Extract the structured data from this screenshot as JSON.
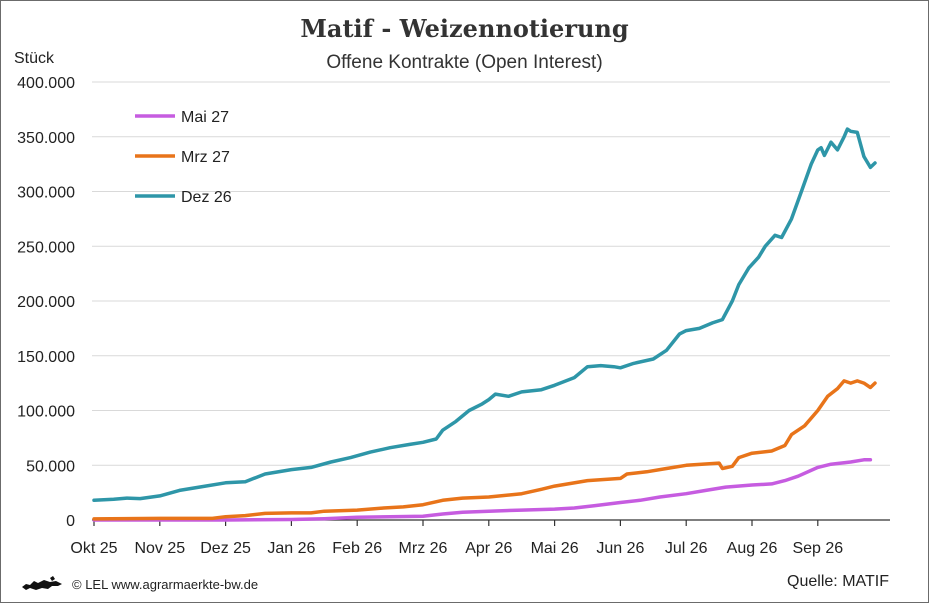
{
  "chart_data": {
    "type": "line",
    "title": "Matif - Weizennotierung",
    "subtitle": "Offene Kontrakte (Open Interest)",
    "ylabel": "Stück",
    "xlabel": "",
    "ylim": [
      0,
      400000
    ],
    "yticks": [
      0,
      50000,
      100000,
      150000,
      200000,
      250000,
      300000,
      350000,
      400000
    ],
    "ytick_labels": [
      "0",
      "50.000",
      "100.000",
      "150.000",
      "200.000",
      "250.000",
      "300.000",
      "350.000",
      "400.000"
    ],
    "x_months": [
      "Okt 25",
      "Nov 25",
      "Dez 25",
      "Jan 26",
      "Feb 26",
      "Mrz 26",
      "Apr 26",
      "Mai 26",
      "Jun 26",
      "Jul 26",
      "Aug 26",
      "Sep 26"
    ],
    "x_unit": "month index (0 = Okt 25)",
    "grid": "horizontal",
    "legend_position": "top-left",
    "series": [
      {
        "name": "Mai 27",
        "color": "#c65ce0",
        "points": [
          [
            0.0,
            0
          ],
          [
            2.0,
            0
          ],
          [
            3.0,
            500
          ],
          [
            3.5,
            1200
          ],
          [
            4.0,
            2500
          ],
          [
            4.5,
            3000
          ],
          [
            5.0,
            3500
          ],
          [
            5.3,
            5500
          ],
          [
            5.6,
            7000
          ],
          [
            6.0,
            8000
          ],
          [
            6.5,
            9000
          ],
          [
            7.0,
            10000
          ],
          [
            7.3,
            11000
          ],
          [
            7.6,
            13000
          ],
          [
            8.0,
            16000
          ],
          [
            8.3,
            18000
          ],
          [
            8.6,
            21000
          ],
          [
            9.0,
            24000
          ],
          [
            9.3,
            27000
          ],
          [
            9.6,
            30000
          ],
          [
            10.0,
            32000
          ],
          [
            10.3,
            33000
          ],
          [
            10.5,
            36000
          ],
          [
            10.7,
            40000
          ],
          [
            11.0,
            48000
          ],
          [
            11.2,
            51000
          ],
          [
            11.5,
            53000
          ],
          [
            11.7,
            55000
          ],
          [
            11.8,
            55000
          ]
        ]
      },
      {
        "name": "Mrz 27",
        "color": "#e8741a",
        "points": [
          [
            0.0,
            1000
          ],
          [
            1.0,
            1500
          ],
          [
            1.8,
            1500
          ],
          [
            2.0,
            3000
          ],
          [
            2.3,
            4000
          ],
          [
            2.6,
            6000
          ],
          [
            3.0,
            6500
          ],
          [
            3.3,
            6500
          ],
          [
            3.5,
            8000
          ],
          [
            4.0,
            9000
          ],
          [
            4.4,
            11000
          ],
          [
            4.7,
            12000
          ],
          [
            5.0,
            14000
          ],
          [
            5.3,
            18000
          ],
          [
            5.6,
            20000
          ],
          [
            6.0,
            21000
          ],
          [
            6.5,
            24000
          ],
          [
            6.8,
            28000
          ],
          [
            7.0,
            31000
          ],
          [
            7.5,
            36000
          ],
          [
            8.0,
            38000
          ],
          [
            8.1,
            42000
          ],
          [
            8.4,
            44000
          ],
          [
            8.7,
            47000
          ],
          [
            9.0,
            50000
          ],
          [
            9.5,
            52000
          ],
          [
            9.55,
            47000
          ],
          [
            9.7,
            49000
          ],
          [
            9.8,
            57000
          ],
          [
            10.0,
            61000
          ],
          [
            10.3,
            63000
          ],
          [
            10.5,
            68000
          ],
          [
            10.6,
            78000
          ],
          [
            10.8,
            86000
          ],
          [
            11.0,
            100000
          ],
          [
            11.15,
            113000
          ],
          [
            11.3,
            120000
          ],
          [
            11.4,
            127000
          ],
          [
            11.5,
            125000
          ],
          [
            11.6,
            127000
          ],
          [
            11.7,
            125000
          ],
          [
            11.8,
            121000
          ],
          [
            11.87,
            125000
          ]
        ]
      },
      {
        "name": "Dez 26",
        "color": "#2e96a8",
        "points": [
          [
            0.0,
            18000
          ],
          [
            0.3,
            19000
          ],
          [
            0.5,
            20000
          ],
          [
            0.7,
            19500
          ],
          [
            1.0,
            22000
          ],
          [
            1.3,
            27000
          ],
          [
            1.6,
            30000
          ],
          [
            2.0,
            34000
          ],
          [
            2.3,
            35000
          ],
          [
            2.6,
            42000
          ],
          [
            3.0,
            46000
          ],
          [
            3.3,
            48000
          ],
          [
            3.6,
            53000
          ],
          [
            3.9,
            57000
          ],
          [
            4.2,
            62000
          ],
          [
            4.5,
            66000
          ],
          [
            4.8,
            69000
          ],
          [
            5.0,
            71000
          ],
          [
            5.2,
            74000
          ],
          [
            5.3,
            82000
          ],
          [
            5.5,
            90000
          ],
          [
            5.7,
            100000
          ],
          [
            5.9,
            106000
          ],
          [
            6.0,
            110000
          ],
          [
            6.1,
            115000
          ],
          [
            6.3,
            113000
          ],
          [
            6.5,
            117000
          ],
          [
            6.8,
            119000
          ],
          [
            7.0,
            123000
          ],
          [
            7.3,
            130000
          ],
          [
            7.5,
            140000
          ],
          [
            7.7,
            141000
          ],
          [
            7.9,
            140000
          ],
          [
            8.0,
            139000
          ],
          [
            8.2,
            143000
          ],
          [
            8.5,
            147000
          ],
          [
            8.7,
            155000
          ],
          [
            8.9,
            170000
          ],
          [
            9.0,
            173000
          ],
          [
            9.2,
            175000
          ],
          [
            9.4,
            180000
          ],
          [
            9.55,
            183000
          ],
          [
            9.7,
            200000
          ],
          [
            9.8,
            215000
          ],
          [
            9.95,
            230000
          ],
          [
            10.1,
            240000
          ],
          [
            10.2,
            250000
          ],
          [
            10.35,
            260000
          ],
          [
            10.45,
            258000
          ],
          [
            10.6,
            275000
          ],
          [
            10.75,
            300000
          ],
          [
            10.9,
            325000
          ],
          [
            11.0,
            338000
          ],
          [
            11.05,
            340000
          ],
          [
            11.1,
            333000
          ],
          [
            11.2,
            345000
          ],
          [
            11.3,
            338000
          ],
          [
            11.4,
            350000
          ],
          [
            11.45,
            357000
          ],
          [
            11.5,
            355000
          ],
          [
            11.6,
            354000
          ],
          [
            11.7,
            332000
          ],
          [
            11.8,
            322000
          ],
          [
            11.87,
            326000
          ]
        ]
      }
    ]
  },
  "footer": {
    "copyright": "© LEL www.agrarmaerkte-bw.de",
    "source": "Quelle:  MATIF"
  },
  "colors": {
    "grid": "#d9d9d9",
    "axis": "#333333"
  }
}
